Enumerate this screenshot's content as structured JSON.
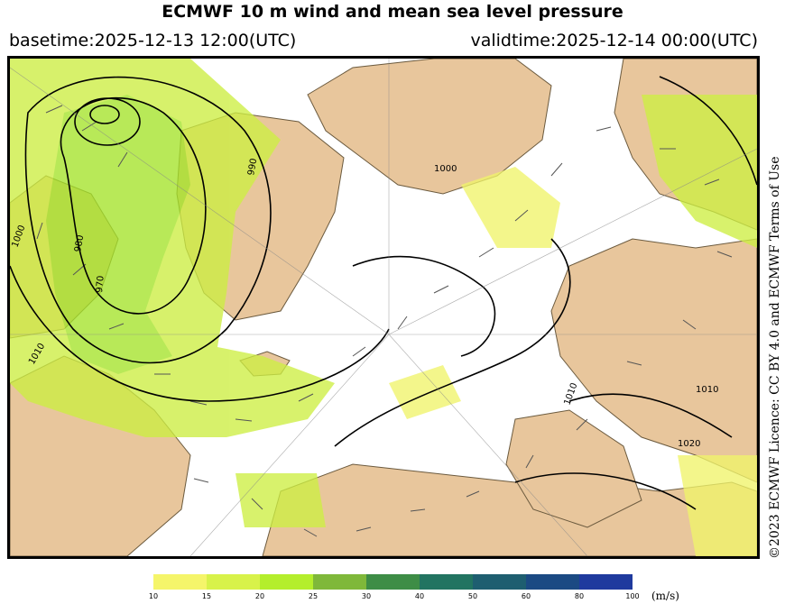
{
  "title": "ECMWF 10 m wind and mean sea level pressure",
  "basetime": "basetime:2025-12-13 12:00(UTC)",
  "validtime": "validtime:2025-12-14 00:00(UTC)",
  "license": "©2023 ECMWF Licence: CC BY 4.0 and ECMWF Terms of Use",
  "colorbar": {
    "unit": "(m/s)",
    "ticks": [
      "10",
      "15",
      "20",
      "25",
      "30",
      "40",
      "50",
      "60",
      "80",
      "100"
    ],
    "colors": [
      "#f5f56a",
      "#d8f24a",
      "#b4ee2c",
      "#7fb83a",
      "#3e8d46",
      "#227461",
      "#1e5e70",
      "#1b4a83",
      "#1f3a9e"
    ]
  },
  "map": {
    "colors": {
      "land": "#e8c69c",
      "ocean": "#ffffff",
      "wind_light": "#f0f36a",
      "wind_mid": "#cdee42",
      "wind_strong": "#a5e42a",
      "isobar": "#000000"
    },
    "isobar_labels": [
      "1000",
      "980",
      "970",
      "990",
      "1000",
      "1010",
      "1010",
      "1010",
      "1020"
    ]
  }
}
